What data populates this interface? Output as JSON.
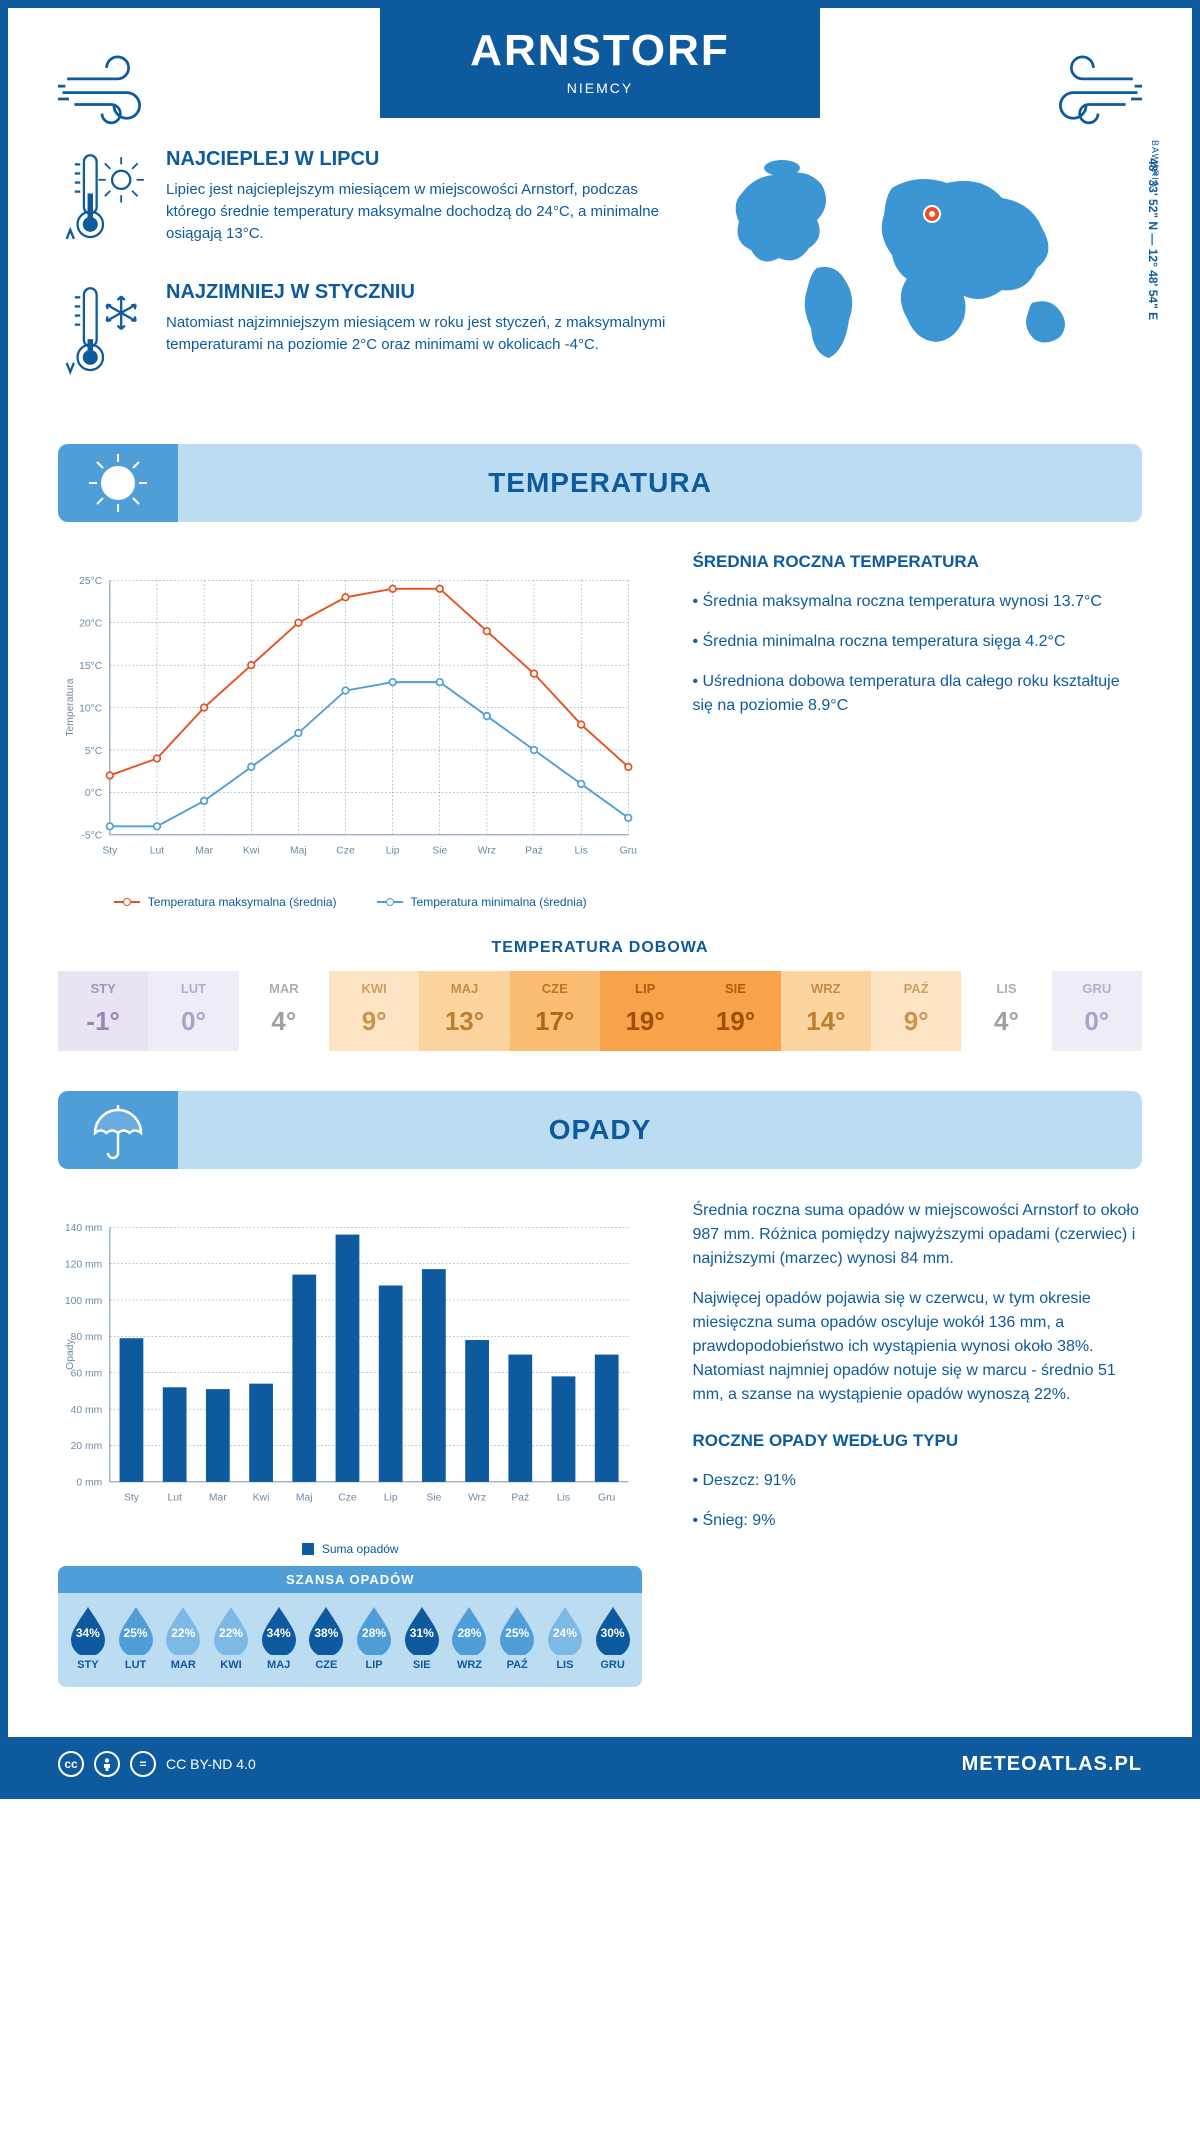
{
  "colors": {
    "primary": "#0d5a9e",
    "light_panel": "#bcdcf2",
    "mid_blue": "#4f9ed8",
    "accent_orange": "#e8501e",
    "line_max": "#e8501e",
    "line_min": "#4f9ed8",
    "bar_fill": "#0d5a9e",
    "grid": "#6b8ba8",
    "white": "#ffffff"
  },
  "header": {
    "title": "ARNSTORF",
    "subtitle": "NIEMCY"
  },
  "location": {
    "coords": "48° 33' 52\" N — 12° 48' 54\" E",
    "region": "BAWARIA",
    "marker_xy": [
      210,
      66
    ]
  },
  "facts": {
    "hot": {
      "title": "NAJCIEPLEJ W LIPCU",
      "text": "Lipiec jest najcieplejszym miesiącem w miejscowości Arnstorf, podczas którego średnie temperatury maksymalne dochodzą do 24°C, a minimalne osiągają 13°C."
    },
    "cold": {
      "title": "NAJZIMNIEJ W STYCZNIU",
      "text": "Natomiast najzimniejszym miesiącem w roku jest styczeń, z maksymalnymi temperaturami na poziomie 2°C oraz minimami w okolicach -4°C."
    }
  },
  "sections": {
    "temperature": "TEMPERATURA",
    "precip": "OPADY"
  },
  "temp_chart": {
    "type": "line",
    "months": [
      "Sty",
      "Lut",
      "Mar",
      "Kwi",
      "Maj",
      "Cze",
      "Lip",
      "Sie",
      "Wrz",
      "Paź",
      "Lis",
      "Gru"
    ],
    "series": [
      {
        "name": "Temperatura maksymalna (średnia)",
        "color": "#e8501e",
        "values": [
          2,
          4,
          10,
          15,
          20,
          23,
          24,
          24,
          19,
          14,
          8,
          3
        ]
      },
      {
        "name": "Temperatura minimalna (średnia)",
        "color": "#4f9ed8",
        "values": [
          -4,
          -4,
          -1,
          3,
          7,
          12,
          13,
          13,
          9,
          5,
          1,
          -3
        ]
      }
    ],
    "ylabel": "Temperatura",
    "ymin": -5,
    "ymax": 25,
    "ystep": 5,
    "ytick_labels": [
      "-5°C",
      "0°C",
      "5°C",
      "10°C",
      "15°C",
      "20°C",
      "25°C"
    ],
    "legend": {
      "max": "Temperatura maksymalna (średnia)",
      "min": "Temperatura minimalna (średnia)"
    }
  },
  "temp_side": {
    "heading": "ŚREDNIA ROCZNA TEMPERATURA",
    "items": [
      "• Średnia maksymalna roczna temperatura wynosi 13.7°C",
      "• Średnia minimalna roczna temperatura sięga 4.2°C",
      "• Uśredniona dobowa temperatura dla całego roku kształtuje się na poziomie 8.9°C"
    ]
  },
  "daily": {
    "title": "TEMPERATURA DOBOWA",
    "months": [
      "STY",
      "LUT",
      "MAR",
      "KWI",
      "MAJ",
      "CZE",
      "LIP",
      "SIE",
      "WRZ",
      "PAŹ",
      "LIS",
      "GRU"
    ],
    "values": [
      "-1°",
      "0°",
      "4°",
      "9°",
      "13°",
      "17°",
      "19°",
      "19°",
      "14°",
      "9°",
      "4°",
      "0°"
    ],
    "bg_colors": [
      "#e9e3f3",
      "#f0ecf6",
      "#ffffff",
      "#fde4c5",
      "#fcd49f",
      "#fbbd72",
      "#f8a24a",
      "#f8a24a",
      "#fcd49f",
      "#fde4c5",
      "#ffffff",
      "#f0ecf6"
    ],
    "text_colors": [
      "#8f89b8",
      "#a9a3c9",
      "#a0a0a0",
      "#c9944e",
      "#c07e30",
      "#b26818",
      "#9e5106",
      "#9e5106",
      "#c07e30",
      "#c9944e",
      "#a0a0a0",
      "#a9a3c9"
    ]
  },
  "precip_chart": {
    "type": "bar",
    "months": [
      "Sty",
      "Lut",
      "Mar",
      "Kwi",
      "Maj",
      "Cze",
      "Lip",
      "Sie",
      "Wrz",
      "Paź",
      "Lis",
      "Gru"
    ],
    "values": [
      79,
      52,
      51,
      54,
      114,
      136,
      108,
      117,
      78,
      70,
      58,
      70
    ],
    "ylabel": "Opady",
    "ymin": 0,
    "ymax": 140,
    "ystep": 20,
    "ytick_labels": [
      "0 mm",
      "20 mm",
      "40 mm",
      "60 mm",
      "80 mm",
      "100 mm",
      "120 mm",
      "140 mm"
    ],
    "legend": "Suma opadów",
    "bar_color": "#0d5a9e",
    "bar_width": 0.55
  },
  "precip_side": {
    "p1": "Średnia roczna suma opadów w miejscowości Arnstorf to około 987 mm. Różnica pomiędzy najwyższymi opadami (czerwiec) i najniższymi (marzec) wynosi 84 mm.",
    "p2": "Najwięcej opadów pojawia się w czerwcu, w tym okresie miesięczna suma opadów oscyluje wokół 136 mm, a prawdopodobieństwo ich wystąpienia wynosi około 38%. Natomiast najmniej opadów notuje się w marcu - średnio 51 mm, a szanse na wystąpienie opadów wynoszą 22%.",
    "type_heading": "ROCZNE OPADY WEDŁUG TYPU",
    "types": [
      "• Deszcz: 91%",
      "• Śnieg: 9%"
    ]
  },
  "chance": {
    "title": "SZANSA OPADÓW",
    "months": [
      "STY",
      "LUT",
      "MAR",
      "KWI",
      "MAJ",
      "CZE",
      "LIP",
      "SIE",
      "WRZ",
      "PAŹ",
      "LIS",
      "GRU"
    ],
    "pct": [
      "34%",
      "25%",
      "22%",
      "22%",
      "34%",
      "38%",
      "28%",
      "31%",
      "28%",
      "25%",
      "24%",
      "30%"
    ],
    "drop_colors": [
      "#0d5a9e",
      "#509ed8",
      "#7cb9e4",
      "#7cb9e4",
      "#0d5a9e",
      "#0d5a9e",
      "#509ed8",
      "#0d5a9e",
      "#509ed8",
      "#509ed8",
      "#7cb9e4",
      "#0d5a9e"
    ]
  },
  "footer": {
    "license": "CC BY-ND 4.0",
    "site": "METEOATLAS.PL"
  }
}
